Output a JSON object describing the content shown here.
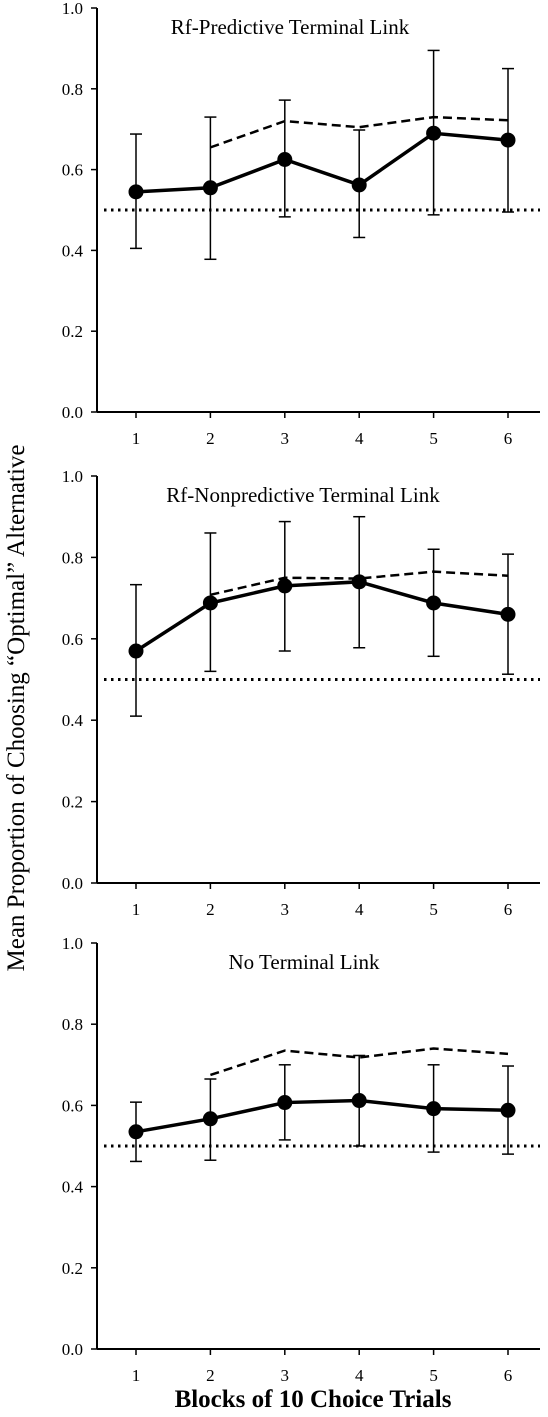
{
  "figure": {
    "ylabel": "Mean Proportion of Choosing “Optimal” Alternative",
    "xlabel": "Blocks of 10 Choice Trials"
  },
  "chart_data": [
    {
      "type": "line",
      "title": "Rf-Predictive Terminal Link",
      "x": [
        1,
        2,
        3,
        4,
        5,
        6
      ],
      "categories": [
        "1",
        "2",
        "3",
        "4",
        "5",
        "6"
      ],
      "ylim": [
        0,
        1
      ],
      "yticks": [
        "0.0",
        "0.2",
        "0.4",
        "0.6",
        "0.8",
        "1.0"
      ],
      "reference_line": 0.5,
      "series": [
        {
          "style": "solid-markers",
          "values": [
            0.545,
            0.555,
            0.625,
            0.562,
            0.69,
            0.673
          ],
          "error_low": [
            0.405,
            0.378,
            0.483,
            0.432,
            0.488,
            0.495
          ],
          "error_high": [
            0.688,
            0.73,
            0.772,
            0.698,
            0.895,
            0.85
          ]
        },
        {
          "style": "dashed",
          "x": [
            2,
            3,
            4,
            5,
            6
          ],
          "values": [
            0.655,
            0.72,
            0.705,
            0.73,
            0.722
          ]
        }
      ]
    },
    {
      "type": "line",
      "title": "Rf-Nonpredictive Terminal Link",
      "x": [
        1,
        2,
        3,
        4,
        5,
        6
      ],
      "categories": [
        "1",
        "2",
        "3",
        "4",
        "5",
        "6"
      ],
      "ylim": [
        0,
        1
      ],
      "yticks": [
        "0.0",
        "0.2",
        "0.4",
        "0.6",
        "0.8",
        "1.0"
      ],
      "reference_line": 0.5,
      "series": [
        {
          "style": "solid-markers",
          "values": [
            0.57,
            0.688,
            0.73,
            0.74,
            0.688,
            0.66
          ],
          "error_low": [
            0.41,
            0.52,
            0.57,
            0.578,
            0.557,
            0.513
          ],
          "error_high": [
            0.733,
            0.86,
            0.888,
            0.9,
            0.82,
            0.808
          ]
        },
        {
          "style": "dashed",
          "x": [
            2,
            3,
            4,
            5,
            6
          ],
          "values": [
            0.708,
            0.75,
            0.748,
            0.765,
            0.755
          ]
        }
      ]
    },
    {
      "type": "line",
      "title": "No Terminal Link",
      "x": [
        1,
        2,
        3,
        4,
        5,
        6
      ],
      "categories": [
        "1",
        "2",
        "3",
        "4",
        "5",
        "6"
      ],
      "ylim": [
        0,
        1
      ],
      "yticks": [
        "0.0",
        "0.2",
        "0.4",
        "0.6",
        "0.8",
        "1.0"
      ],
      "reference_line": 0.5,
      "series": [
        {
          "style": "solid-markers",
          "values": [
            0.535,
            0.567,
            0.607,
            0.612,
            0.592,
            0.588
          ],
          "error_low": [
            0.462,
            0.465,
            0.515,
            0.5,
            0.485,
            0.48
          ],
          "error_high": [
            0.608,
            0.665,
            0.7,
            0.723,
            0.7,
            0.697
          ]
        },
        {
          "style": "dashed",
          "x": [
            2,
            3,
            4,
            5,
            6
          ],
          "values": [
            0.675,
            0.735,
            0.718,
            0.74,
            0.727
          ]
        }
      ]
    }
  ]
}
